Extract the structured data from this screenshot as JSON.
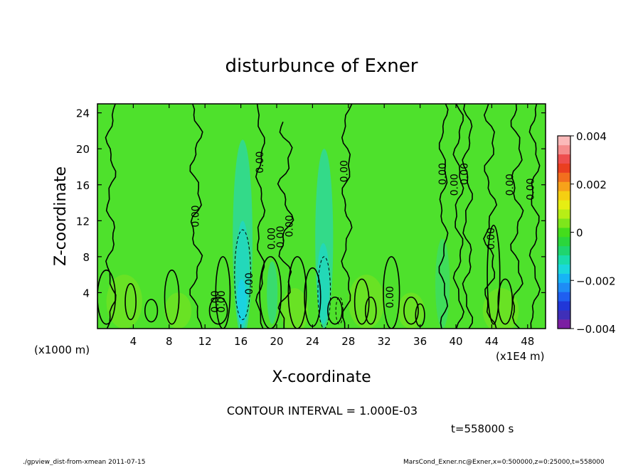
{
  "chart_data": {
    "type": "heatmap",
    "title": "disturbunce of Exner",
    "xlabel": "X-coordinate",
    "ylabel": "Z-coordinate",
    "x_unit": "(x1E4 m)",
    "y_unit": "(x1000 m)",
    "xlim": [
      0,
      50
    ],
    "ylim": [
      0,
      25
    ],
    "x_ticks": [
      4,
      8,
      12,
      16,
      20,
      24,
      28,
      32,
      36,
      40,
      44,
      48
    ],
    "y_ticks": [
      4,
      8,
      12,
      16,
      20,
      24
    ],
    "x_tick_labels": [
      "4",
      "8",
      "12",
      "16",
      "20",
      "24",
      "28",
      "32",
      "36",
      "40",
      "44",
      "48"
    ],
    "y_tick_labels": [
      "4",
      "8",
      "12",
      "16",
      "20",
      "24"
    ],
    "colorbar": {
      "range": [
        -0.004,
        0.004
      ],
      "tick_labels": [
        "0.004",
        "0.002",
        "0",
        "−0.002",
        "−0.004"
      ],
      "colors": [
        "#7b1fa2",
        "#3f2fb8",
        "#2137d8",
        "#1f5ff0",
        "#1e8cf5",
        "#17b4f5",
        "#1ad7dc",
        "#19dcaa",
        "#1fd56e",
        "#2bd63c",
        "#44dd1c",
        "#7ee61b",
        "#b7ee16",
        "#e6ee13",
        "#f5cf12",
        "#f7a21a",
        "#f26f1e",
        "#ea3f20",
        "#ee4e4e",
        "#f58c8c",
        "#fbb9b9"
      ]
    },
    "contour_interval": "CONTOUR INTERVAL = 1.000E-03",
    "contour_labels": [
      "0.00",
      "0.00",
      "0.00",
      "0.00",
      "0.00",
      "0.00",
      "0.00",
      "0.00",
      "0.00",
      "0.00",
      "0.00",
      "0.00",
      "0.00",
      "0.00",
      "0.00",
      "0.00"
    ],
    "background_value": 0,
    "negative_regions_x": [
      16,
      25
    ]
  },
  "time_label": "t=558000 s",
  "footer_left": "./gpview_dist-from-xmean  2011-07-15",
  "footer_right": "MarsCond_Exner.nc@Exner,x=0:500000,z=0:25000,t=558000"
}
